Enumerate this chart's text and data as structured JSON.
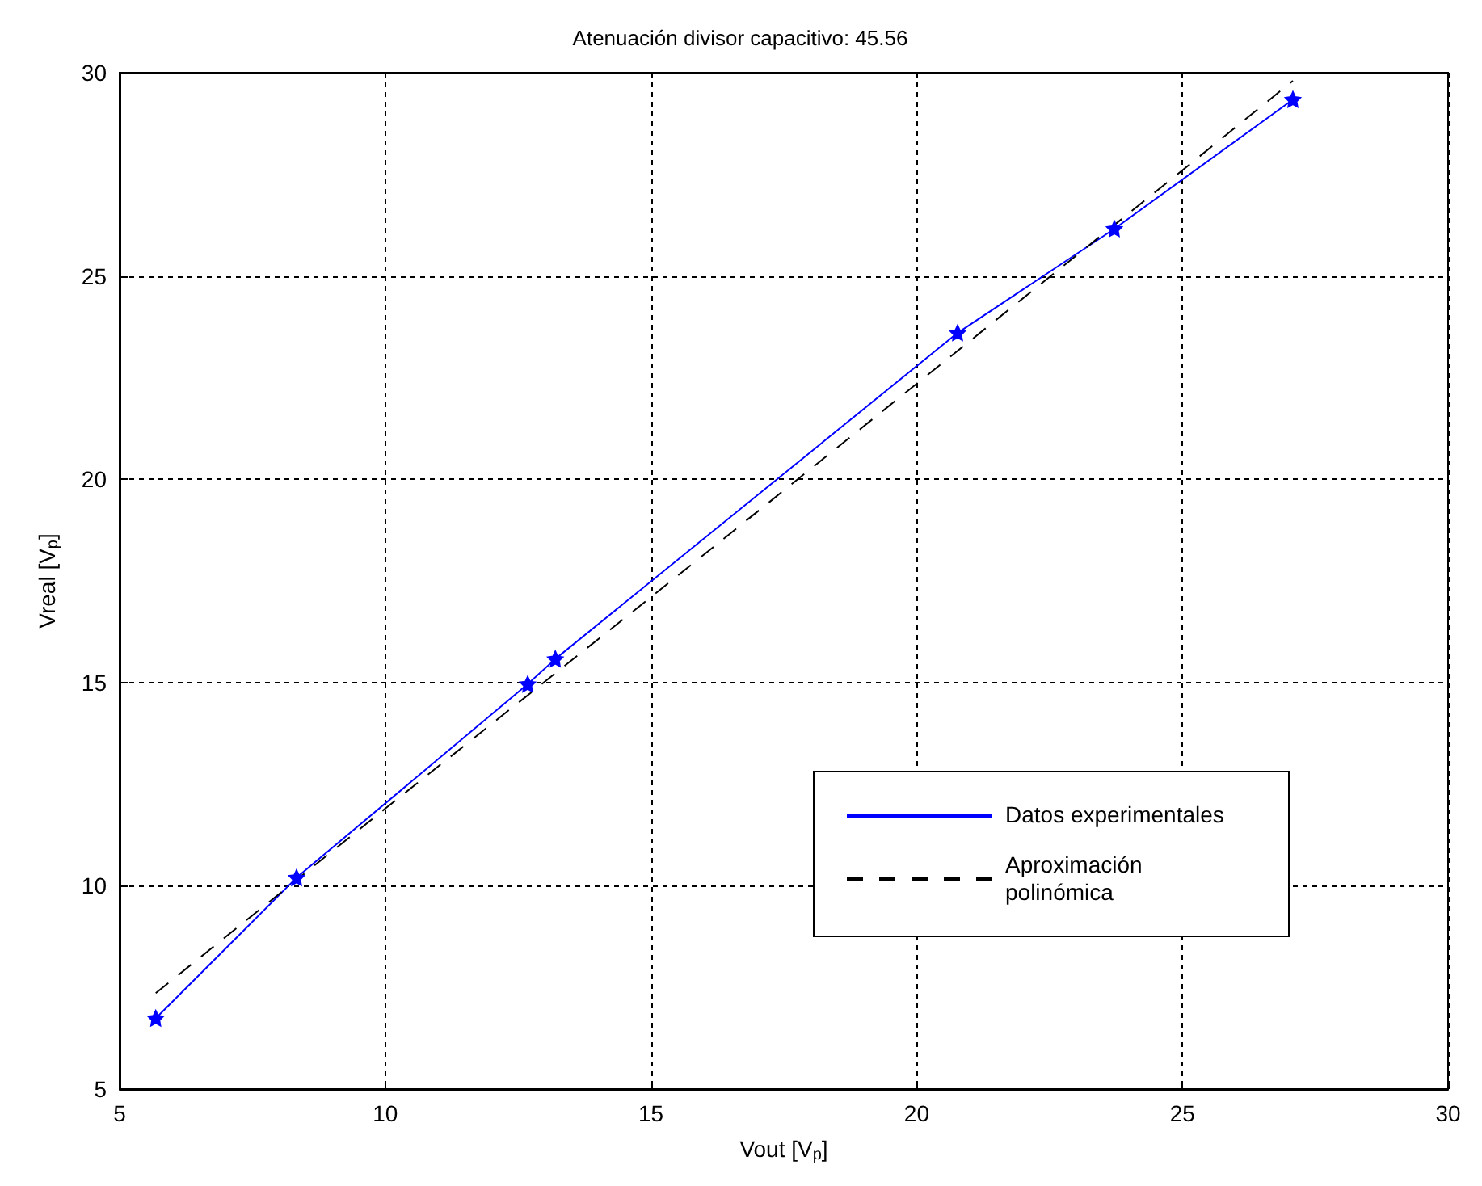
{
  "chart_data": {
    "type": "line",
    "title": "Atenuación divisor capacitivo: 45.56",
    "xlabel": "Vout [V$_{p}$]",
    "ylabel": "Vreal [V$_{p}$]",
    "xlim": [
      5,
      30
    ],
    "ylim": [
      5,
      30
    ],
    "xticks": [
      5,
      10,
      15,
      20,
      25,
      30
    ],
    "yticks": [
      5,
      10,
      15,
      20,
      25,
      30
    ],
    "grid": true,
    "legend": "bottom right",
    "series": [
      {
        "name": "Datos experimentales",
        "color": "#0000ff",
        "marker": "star",
        "line_style": "solid",
        "x": [
          5.68,
          8.33,
          12.68,
          13.2,
          20.77,
          23.72,
          27.08
        ],
        "values": [
          6.74,
          10.2,
          14.96,
          15.58,
          23.6,
          26.16,
          29.34
        ]
      },
      {
        "name": "Aproximación\npolinómica",
        "color": "#000000",
        "marker": "none",
        "line_style": "dashed",
        "x": [
          5.68,
          10,
          15,
          20,
          25,
          27.08
        ],
        "values": [
          7.36,
          11.9,
          17.1,
          22.35,
          27.6,
          29.8
        ]
      }
    ]
  }
}
